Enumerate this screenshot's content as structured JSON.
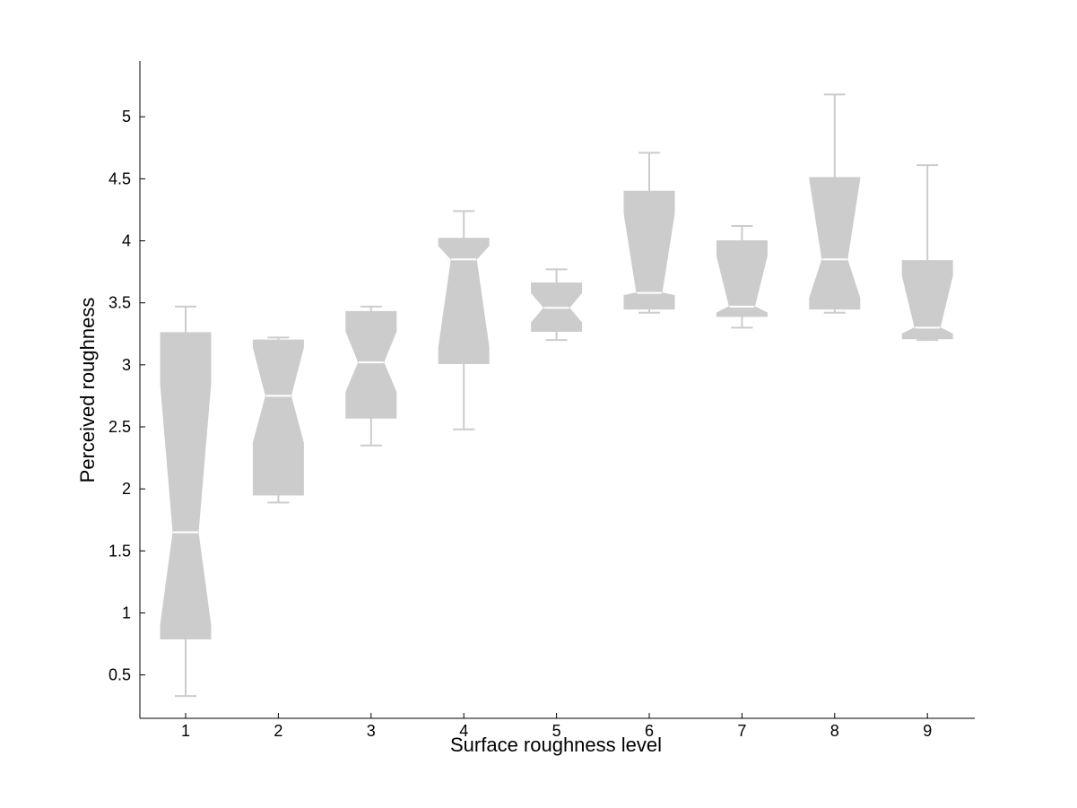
{
  "chart_data": {
    "type": "boxplot",
    "notched": true,
    "title": "",
    "xlabel": "Surface roughness level",
    "ylabel": "Perceived roughness",
    "categories": [
      "1",
      "2",
      "3",
      "4",
      "5",
      "6",
      "7",
      "8",
      "9"
    ],
    "ylim": [
      0.15,
      5.45
    ],
    "yticks": [
      0.5,
      1,
      1.5,
      2,
      2.5,
      3,
      3.5,
      4,
      4.5,
      5
    ],
    "ytick_labels": [
      "0.5",
      "1",
      "1.5",
      "2",
      "2.5",
      "3",
      "3.5",
      "4",
      "4.5",
      "5"
    ],
    "grid": false,
    "box_color": "#cccccc",
    "median_color": "#ffffff",
    "boxes": [
      {
        "category": "1",
        "whisker_low": 0.33,
        "q1": 0.79,
        "notch_low": 0.9,
        "median": 1.65,
        "notch_high": 2.85,
        "q3": 3.26,
        "whisker_high": 3.47
      },
      {
        "category": "2",
        "whisker_low": 1.89,
        "q1": 1.95,
        "notch_low": 2.37,
        "median": 2.75,
        "notch_high": 3.14,
        "q3": 3.2,
        "whisker_high": 3.22
      },
      {
        "category": "3",
        "whisker_low": 2.35,
        "q1": 2.57,
        "notch_low": 2.78,
        "median": 3.02,
        "notch_high": 3.27,
        "q3": 3.43,
        "whisker_high": 3.47
      },
      {
        "category": "4",
        "whisker_low": 2.48,
        "q1": 3.01,
        "notch_low": 3.14,
        "median": 3.85,
        "notch_high": 3.96,
        "q3": 4.02,
        "whisker_high": 4.24
      },
      {
        "category": "5",
        "whisker_low": 3.2,
        "q1": 3.27,
        "notch_low": 3.34,
        "median": 3.46,
        "notch_high": 3.58,
        "q3": 3.66,
        "whisker_high": 3.77
      },
      {
        "category": "6",
        "whisker_low": 3.42,
        "q1": 3.45,
        "notch_low": 3.56,
        "median": 3.58,
        "notch_high": 4.22,
        "q3": 4.4,
        "whisker_high": 4.71
      },
      {
        "category": "7",
        "whisker_low": 3.3,
        "q1": 3.39,
        "notch_low": 3.42,
        "median": 3.47,
        "notch_high": 3.88,
        "q3": 4.0,
        "whisker_high": 4.12
      },
      {
        "category": "8",
        "whisker_low": 3.42,
        "q1": 3.45,
        "notch_low": 3.54,
        "median": 3.85,
        "notch_high": 4.5,
        "q3": 4.51,
        "whisker_high": 5.18
      },
      {
        "category": "9",
        "whisker_low": 3.2,
        "q1": 3.21,
        "notch_low": 3.25,
        "median": 3.3,
        "notch_high": 3.72,
        "q3": 3.84,
        "whisker_high": 4.61
      }
    ]
  }
}
